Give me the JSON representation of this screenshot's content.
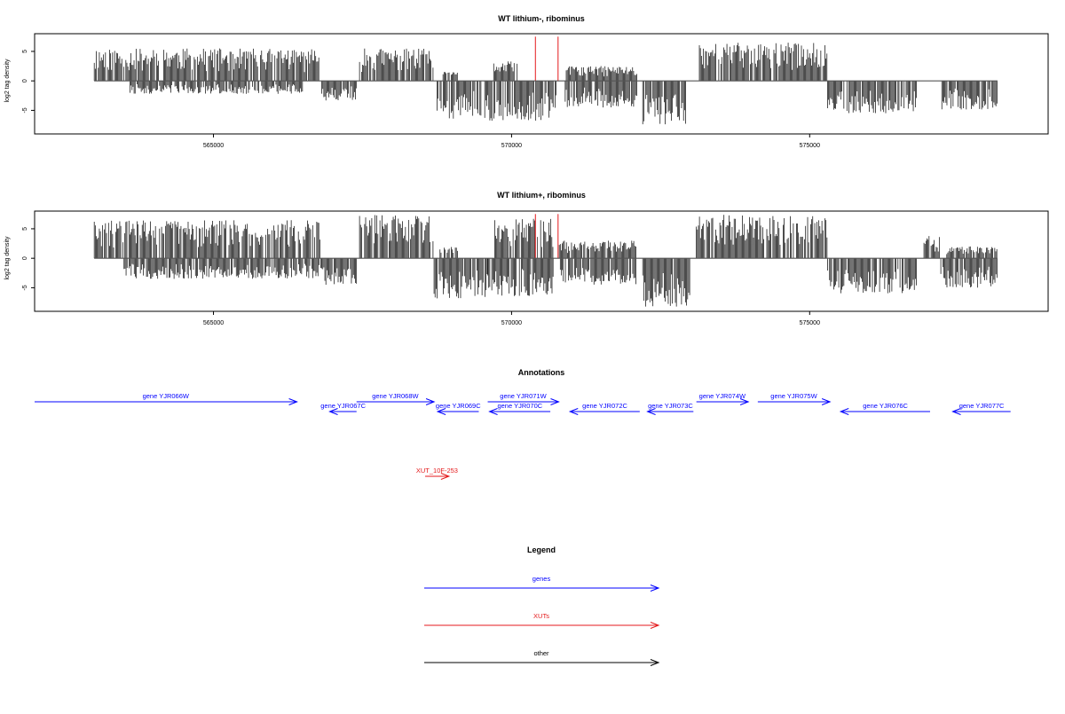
{
  "chart_data": [
    {
      "type": "bar",
      "title": "WT lithium-, ribominus",
      "xlabel": "",
      "ylabel": "log2 tag density",
      "xlim": [
        562000,
        579000
      ],
      "ylim": [
        -9,
        8
      ],
      "x_ticks": [
        {
          "value": 565000,
          "label": "565000"
        },
        {
          "value": 570000,
          "label": "570000"
        },
        {
          "value": 575000,
          "label": "575000"
        }
      ],
      "y_ticks": [
        {
          "value": 5,
          "label": "5"
        },
        {
          "value": 0,
          "label": "0"
        },
        {
          "value": -5,
          "label": "-5"
        }
      ],
      "baseline_range": [
        563000,
        578150
      ],
      "plus_strand_regions": [
        {
          "start": 563000,
          "end": 566800,
          "max": 5.5
        },
        {
          "start": 567450,
          "end": 568700,
          "max": 5.5
        },
        {
          "start": 568850,
          "end": 569100,
          "max": 1.5
        },
        {
          "start": 569700,
          "end": 570100,
          "max": 3.3
        },
        {
          "start": 570900,
          "end": 572100,
          "max": 2.5
        },
        {
          "start": 573150,
          "end": 575300,
          "max": 6.5
        }
      ],
      "minus_strand_regions": [
        {
          "start": 563600,
          "end": 566500,
          "max": 2.2
        },
        {
          "start": 566800,
          "end": 567400,
          "max": 3.5
        },
        {
          "start": 568750,
          "end": 569500,
          "max": 6.5
        },
        {
          "start": 569550,
          "end": 570750,
          "max": 6.8
        },
        {
          "start": 570900,
          "end": 572100,
          "max": 4.5
        },
        {
          "start": 572200,
          "end": 572950,
          "max": 7.5
        },
        {
          "start": 575300,
          "end": 576800,
          "max": 5.5
        },
        {
          "start": 577200,
          "end": 578150,
          "max": 5
        }
      ],
      "marker_lines": [
        {
          "x": 570400,
          "y": 7.5,
          "color": "#e41a1c"
        },
        {
          "x": 570780,
          "y": 7.5,
          "color": "#e41a1c"
        }
      ],
      "seed": 11
    },
    {
      "type": "bar",
      "title": "WT lithium+, ribominus",
      "xlabel": "",
      "ylabel": "log2 tag density",
      "xlim": [
        562000,
        579000
      ],
      "ylim": [
        -9,
        8
      ],
      "x_ticks": [
        {
          "value": 565000,
          "label": "565000"
        },
        {
          "value": 570000,
          "label": "570000"
        },
        {
          "value": 575000,
          "label": "575000"
        }
      ],
      "y_ticks": [
        {
          "value": 5,
          "label": "5"
        },
        {
          "value": 0,
          "label": "0"
        },
        {
          "value": -5,
          "label": "-5"
        }
      ],
      "baseline_range": [
        563000,
        578150
      ],
      "plus_strand_regions": [
        {
          "start": 563000,
          "end": 566800,
          "max": 6.5
        },
        {
          "start": 567450,
          "end": 568700,
          "max": 7.5
        },
        {
          "start": 568800,
          "end": 569100,
          "max": 2
        },
        {
          "start": 569700,
          "end": 570700,
          "max": 6.8
        },
        {
          "start": 570800,
          "end": 572100,
          "max": 3
        },
        {
          "start": 573100,
          "end": 575300,
          "max": 7.5
        },
        {
          "start": 576900,
          "end": 577200,
          "max": 3.8
        },
        {
          "start": 577300,
          "end": 578150,
          "max": 2
        }
      ],
      "minus_strand_regions": [
        {
          "start": 563500,
          "end": 566800,
          "max": 3.5
        },
        {
          "start": 566800,
          "end": 567400,
          "max": 4.5
        },
        {
          "start": 568700,
          "end": 569600,
          "max": 6.8
        },
        {
          "start": 569600,
          "end": 570700,
          "max": 6.5
        },
        {
          "start": 570800,
          "end": 572100,
          "max": 4.5
        },
        {
          "start": 572200,
          "end": 573000,
          "max": 8.5
        },
        {
          "start": 575300,
          "end": 576800,
          "max": 6
        },
        {
          "start": 577200,
          "end": 578150,
          "max": 5
        }
      ],
      "marker_lines": [
        {
          "x": 570400,
          "y": 7.5,
          "color": "#e41a1c"
        },
        {
          "x": 570780,
          "y": 7.5,
          "color": "#e41a1c"
        }
      ],
      "seed": 29
    }
  ],
  "annotations": {
    "title": "Annotations",
    "xlim": [
      562000,
      579000
    ],
    "features": [
      {
        "label": "gene YJR066W",
        "start": 562000,
        "end": 566400,
        "strand": "+",
        "row": 0,
        "color": "#0000ff"
      },
      {
        "label": "gene YJR067C",
        "start": 566950,
        "end": 567400,
        "strand": "-",
        "row": 1,
        "color": "#0000ff"
      },
      {
        "label": "gene YJR068W",
        "start": 567400,
        "end": 568700,
        "strand": "+",
        "row": 0,
        "color": "#0000ff"
      },
      {
        "label": "gene YJR069C",
        "start": 568760,
        "end": 569450,
        "strand": "-",
        "row": 1,
        "color": "#0000ff"
      },
      {
        "label": "gene YJR070C",
        "start": 569630,
        "end": 570650,
        "strand": "-",
        "row": 1,
        "color": "#0000ff"
      },
      {
        "label": "gene YJR071W",
        "start": 569600,
        "end": 570790,
        "strand": "+",
        "row": 0,
        "color": "#0000ff"
      },
      {
        "label": "gene YJR072C",
        "start": 570980,
        "end": 572150,
        "strand": "-",
        "row": 1,
        "color": "#0000ff"
      },
      {
        "label": "gene YJR073C",
        "start": 572280,
        "end": 573050,
        "strand": "-",
        "row": 1,
        "color": "#0000ff"
      },
      {
        "label": "gene YJR074W",
        "start": 573100,
        "end": 573970,
        "strand": "+",
        "row": 0,
        "color": "#0000ff"
      },
      {
        "label": "gene YJR075W",
        "start": 574130,
        "end": 575340,
        "strand": "+",
        "row": 0,
        "color": "#0000ff"
      },
      {
        "label": "gene YJR076C",
        "start": 575520,
        "end": 577020,
        "strand": "-",
        "row": 1,
        "color": "#0000ff"
      },
      {
        "label": "gene YJR077C",
        "start": 577400,
        "end": 578370,
        "strand": "-",
        "row": 1,
        "color": "#0000ff"
      },
      {
        "label": "XUT_10F-253",
        "start": 568550,
        "end": 568950,
        "strand": "+",
        "row": 2,
        "color": "#e41a1c"
      }
    ]
  },
  "legend": {
    "title": "Legend",
    "items": [
      {
        "label": "genes",
        "color": "#0000ff"
      },
      {
        "label": "XUTs",
        "color": "#e41a1c"
      },
      {
        "label": "other",
        "color": "#000000"
      }
    ]
  }
}
